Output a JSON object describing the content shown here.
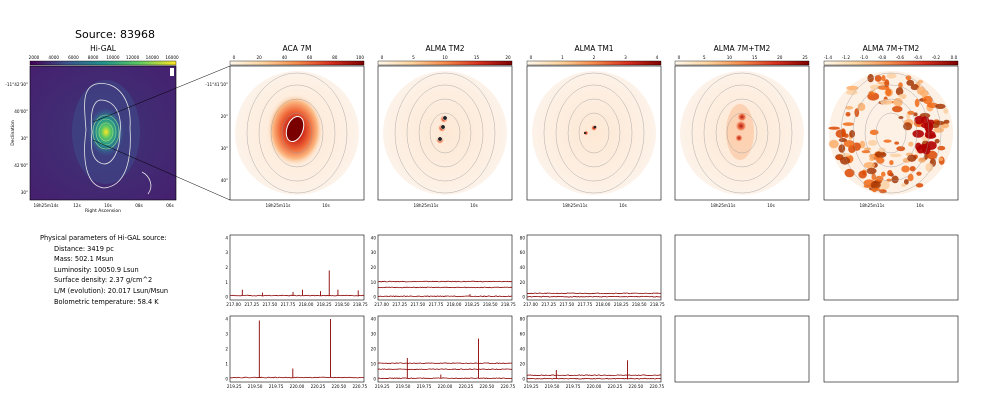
{
  "figure": {
    "title": "Source: 83968"
  },
  "parameters": {
    "heading": "Physical parameters of Hi-GAL source:",
    "lines": [
      "Distance: 3419 pc",
      "Mass: 502.1 Msun",
      "Luminosity: 10050.9 Lsun",
      "Surface density: 2.37 g/cm^2",
      "L/M (evolution): 20.017 Lsun/Msun",
      "Bolometric temperature: 58.4 K"
    ]
  },
  "colors": {
    "hot_cmap_dark": "#7a0000",
    "hot_cmap_light": "#fff5e6",
    "viridis_dark": "#440154",
    "spectrum_line": "#8b0000"
  },
  "chart_data": [
    {
      "type": "heatmap",
      "title": "Hi-GAL",
      "colorbar_ticks": [
        "2000",
        "4000",
        "6000",
        "8000",
        "10000",
        "12000",
        "14000",
        "16000"
      ],
      "colormap": "viridis",
      "xlabel": "Right Ascension",
      "ylabel": "Declination",
      "x_ticks": [
        "18h25m14s",
        "12s",
        "10s",
        "08s",
        "06s"
      ],
      "y_ticks": [
        "-11°42'30\"",
        "40'00\"",
        "30\"",
        "42'00\"",
        "30\""
      ]
    },
    {
      "type": "heatmap",
      "title": "ACA 7M",
      "colorbar_ticks": [
        "0",
        "20",
        "40",
        "60",
        "80",
        "100"
      ],
      "colormap": "hot_r",
      "x_ticks": [
        "18h25m11s",
        "10s"
      ],
      "y_ticks": [
        "-11°41'10\"",
        "20\"",
        "30\"",
        "40\""
      ]
    },
    {
      "type": "heatmap",
      "title": "ALMA TM2",
      "colorbar_ticks": [
        "0",
        "5",
        "10",
        "15",
        "20"
      ],
      "colormap": "hot_r",
      "x_ticks": [
        "18h25m11s",
        "10s"
      ]
    },
    {
      "type": "heatmap",
      "title": "ALMA TM1",
      "colorbar_ticks": [
        "0",
        "1",
        "2",
        "3",
        "4"
      ],
      "colormap": "hot_r",
      "x_ticks": [
        "18h25m11s",
        "10s"
      ]
    },
    {
      "type": "heatmap",
      "title": "ALMA 7M+TM2",
      "colorbar_ticks": [
        "0",
        "5",
        "10",
        "15",
        "20",
        "25"
      ],
      "colormap": "hot_r",
      "x_ticks": [
        "18h25m11s",
        "10s"
      ]
    },
    {
      "type": "heatmap",
      "title": "ALMA 7M+TM2",
      "colorbar_ticks": [
        "-1.4",
        "-1.2",
        "-1.0",
        "-0.8",
        "-0.6",
        "-0.4",
        "-0.2",
        "0.0"
      ],
      "colormap": "hot_r",
      "x_ticks": [
        "18h25m11s",
        "10s"
      ]
    },
    {
      "type": "line",
      "name": "ACA 7M spectrum (upper band)",
      "x_ticks": [
        "217.00",
        "217.25",
        "217.50",
        "217.75",
        "218.00",
        "218.25",
        "218.50",
        "218.75"
      ],
      "y_ticks": [
        "0",
        "1",
        "2",
        "3",
        "4"
      ],
      "ylim": [
        -0.2,
        4.2
      ],
      "baseline": 0.1,
      "peaks": [
        [
          217.12,
          0.5
        ],
        [
          217.4,
          0.3
        ],
        [
          217.82,
          0.35
        ],
        [
          217.95,
          0.5
        ],
        [
          218.2,
          0.4
        ],
        [
          218.32,
          1.8
        ],
        [
          218.44,
          0.5
        ],
        [
          218.72,
          0.45
        ]
      ]
    },
    {
      "type": "line",
      "name": "ALMA TM2 spectrum (upper band)",
      "x_ticks": [
        "217.00",
        "217.25",
        "217.50",
        "217.75",
        "218.00",
        "218.25",
        "218.50",
        "218.75"
      ],
      "y_ticks": [
        "0",
        "10",
        "20",
        "30",
        "40"
      ],
      "ylim": [
        -2,
        42
      ],
      "baselines": [
        10.5,
        6.5,
        0.5
      ],
      "peaks": [
        [
          218.22,
          2
        ]
      ]
    },
    {
      "type": "line",
      "name": "ALMA TM1 spectrum (upper band)",
      "x_ticks": [
        "217.00",
        "217.25",
        "217.50",
        "217.75",
        "218.00",
        "218.25",
        "218.50",
        "218.75"
      ],
      "y_ticks": [
        "0",
        "20",
        "40",
        "60",
        "80"
      ],
      "ylim": [
        -4,
        84
      ],
      "baselines": [
        5,
        0.5
      ],
      "peaks": []
    },
    {
      "type": "line",
      "name": "ACA 7M spectrum (lower band)",
      "x_ticks": [
        "219.25",
        "219.50",
        "219.75",
        "220.00",
        "220.25",
        "220.50",
        "220.75"
      ],
      "y_ticks": [
        "0",
        "1",
        "2",
        "3",
        "4"
      ],
      "ylim": [
        -0.2,
        4.2
      ],
      "baseline": 0.1,
      "peaks": [
        [
          219.55,
          3.9
        ],
        [
          219.95,
          0.7
        ],
        [
          220.4,
          4.0
        ]
      ]
    },
    {
      "type": "line",
      "name": "ALMA TM2 spectrum (lower band)",
      "x_ticks": [
        "219.25",
        "219.50",
        "219.75",
        "220.00",
        "220.25",
        "220.50",
        "220.75"
      ],
      "y_ticks": [
        "0",
        "10",
        "20",
        "30",
        "40"
      ],
      "ylim": [
        -2,
        42
      ],
      "baselines": [
        10.5,
        6.5,
        0.5
      ],
      "peaks": [
        [
          219.55,
          14
        ],
        [
          219.95,
          3
        ],
        [
          220.4,
          27
        ]
      ]
    },
    {
      "type": "line",
      "name": "ALMA TM1 spectrum (lower band)",
      "x_ticks": [
        "219.25",
        "219.50",
        "219.75",
        "220.00",
        "220.25",
        "220.50",
        "220.75"
      ],
      "y_ticks": [
        "0",
        "20",
        "40",
        "60",
        "80"
      ],
      "ylim": [
        -4,
        84
      ],
      "baselines": [
        5,
        0.5
      ],
      "peaks": [
        [
          219.55,
          12
        ],
        [
          220.4,
          25
        ]
      ]
    }
  ]
}
